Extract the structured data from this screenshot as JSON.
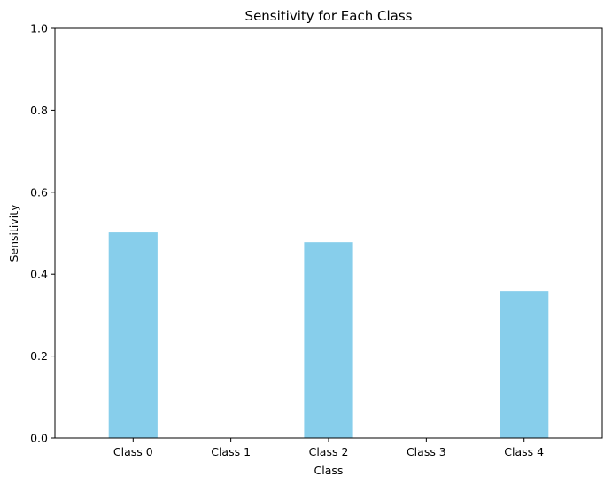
{
  "chart_data": {
    "type": "bar",
    "title": "Sensitivity for Each Class",
    "xlabel": "Class",
    "ylabel": "Sensitivity",
    "categories": [
      "Class 0",
      "Class 1",
      "Class 2",
      "Class 3",
      "Class 4"
    ],
    "values": [
      0.502,
      0.0,
      0.478,
      0.0,
      0.359
    ],
    "ylim": [
      0,
      1
    ],
    "yticks": [
      0.0,
      0.2,
      0.4,
      0.6,
      0.8,
      1.0
    ],
    "ytick_labels": [
      "0.0",
      "0.2",
      "0.4",
      "0.6",
      "0.8",
      "1.0"
    ],
    "bar_color": "#87ceeb",
    "grid": false,
    "legend": "none"
  }
}
